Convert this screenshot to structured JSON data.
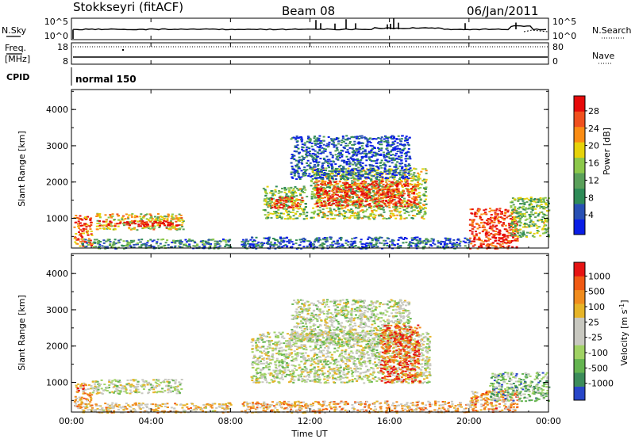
{
  "header": {
    "station": "Stokkseyri (fitACF)",
    "beam": "Beam 08",
    "date": "06/Jan/2011"
  },
  "top_panels": {
    "nsky_label": "N.Sky",
    "nsearch_label": "N.Search",
    "noise_ticks": [
      "10^5",
      "10^0"
    ],
    "freq_label": "Freq.",
    "freq_unit": "[MHz]",
    "freq_ticks": [
      "18",
      "8"
    ],
    "nave_label": "Nave",
    "nave_ticks": [
      "80",
      "0"
    ],
    "cpid_label": "CPID",
    "cpid_value": "normal 150"
  },
  "colors": {
    "power_scale": [
      "#0a1ee6",
      "#2850b4",
      "#2e8b57",
      "#5aa05a",
      "#8cc84b",
      "#e6d20a",
      "#fa8c14",
      "#f0501e",
      "#e60a0a"
    ],
    "velocity_scale": [
      "#2846c8",
      "#3c8c5a",
      "#64b450",
      "#a0d264",
      "#c8c8c0",
      "#c8c8c0",
      "#e6b428",
      "#f08c1e",
      "#f05a14",
      "#e61414"
    ]
  },
  "chart_data": [
    {
      "type": "heatmap",
      "name": "power",
      "ylabel": "Slant Range [km]",
      "yticks": [
        "1000",
        "2000",
        "3000",
        "4000"
      ],
      "ylim": [
        180,
        4550
      ],
      "colorbar_label": "Power [dB]",
      "colorbar_ticks": [
        "4",
        "8",
        "12",
        "16",
        "20",
        "24",
        "28"
      ],
      "regions": [
        {
          "t0": 0.1,
          "t1": 1.0,
          "r0": 250,
          "r1": 1100,
          "level": 0.8
        },
        {
          "t0": 1.2,
          "t1": 5.6,
          "r0": 700,
          "r1": 1150,
          "level": 0.6
        },
        {
          "t0": 1.3,
          "t1": 5.4,
          "r0": 800,
          "r1": 950,
          "level": 1.0
        },
        {
          "t0": 0.5,
          "t1": 8.0,
          "r0": 180,
          "r1": 450,
          "level": 0.3
        },
        {
          "t0": 9.6,
          "t1": 11.8,
          "r0": 1000,
          "r1": 1900,
          "level": 0.45
        },
        {
          "t0": 10.0,
          "t1": 11.6,
          "r0": 1300,
          "r1": 1600,
          "level": 0.85
        },
        {
          "t0": 12.0,
          "t1": 17.8,
          "r0": 1000,
          "r1": 2400,
          "level": 0.5
        },
        {
          "t0": 12.2,
          "t1": 17.4,
          "r0": 1350,
          "r1": 2050,
          "level": 0.9
        },
        {
          "t0": 11.0,
          "t1": 17.0,
          "r0": 2100,
          "r1": 3300,
          "level": 0.15
        },
        {
          "t0": 8.5,
          "t1": 20.0,
          "r0": 180,
          "r1": 500,
          "level": 0.2
        },
        {
          "t0": 20.0,
          "t1": 22.4,
          "r0": 180,
          "r1": 1300,
          "level": 0.9
        },
        {
          "t0": 22.0,
          "t1": 24.0,
          "r0": 500,
          "r1": 1600,
          "level": 0.45
        }
      ]
    },
    {
      "type": "heatmap",
      "name": "velocity",
      "xlabel": "Time UT",
      "xticks": [
        "00:00",
        "04:00",
        "08:00",
        "12:00",
        "16:00",
        "20:00",
        "00:00"
      ],
      "xlim": [
        0,
        24
      ],
      "ylabel": "Slant Range [km]",
      "yticks": [
        "1000",
        "2000",
        "3000",
        "4000"
      ],
      "ylim": [
        180,
        4550
      ],
      "colorbar_label": "Velocity [m s^-1]",
      "colorbar_ticks": [
        "1000",
        "500",
        "100",
        "25",
        "-25",
        "-100",
        "-500",
        "-1000"
      ],
      "regions": [
        {
          "t0": 0.1,
          "t1": 1.0,
          "r0": 300,
          "r1": 1000,
          "level": 0.7
        },
        {
          "t0": 1.0,
          "t1": 5.5,
          "r0": 700,
          "r1": 1100,
          "level": 0.45
        },
        {
          "t0": 0.5,
          "t1": 8.0,
          "r0": 180,
          "r1": 450,
          "level": 0.6
        },
        {
          "t0": 9.0,
          "t1": 18.0,
          "r0": 1000,
          "r1": 2400,
          "level": 0.45
        },
        {
          "t0": 11.0,
          "t1": 17.0,
          "r0": 2100,
          "r1": 3300,
          "level": 0.45
        },
        {
          "t0": 15.5,
          "t1": 17.5,
          "r0": 1000,
          "r1": 2600,
          "level": 0.85
        },
        {
          "t0": 8.5,
          "t1": 20.0,
          "r0": 180,
          "r1": 500,
          "level": 0.65
        },
        {
          "t0": 20.0,
          "t1": 22.4,
          "r0": 200,
          "r1": 800,
          "level": 0.7
        },
        {
          "t0": 21.0,
          "t1": 24.0,
          "r0": 500,
          "r1": 1300,
          "level": 0.3
        }
      ]
    }
  ]
}
